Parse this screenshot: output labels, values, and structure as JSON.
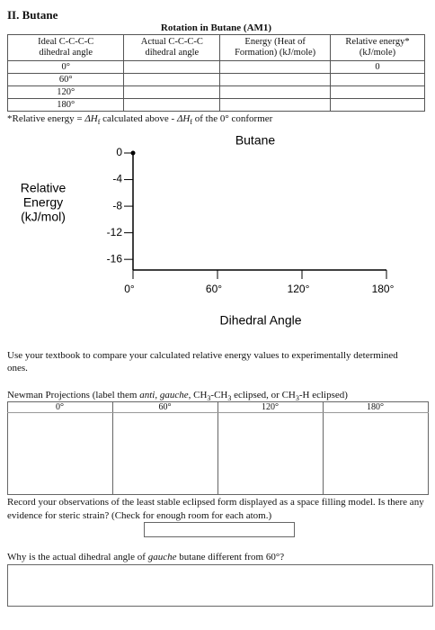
{
  "heading": "II. Butane",
  "table": {
    "title": "Rotation in Butane (AM1)",
    "headers": [
      [
        "Ideal C-C-C-C",
        "dihedral angle"
      ],
      [
        "Actual C-C-C-C",
        "dihedral angle"
      ],
      [
        "Energy (Heat of",
        "Formation) (kJ/mole)"
      ],
      [
        "Relative energy*",
        "(kJ/mole)"
      ]
    ],
    "rows": [
      {
        "angle": "0°",
        "relative_energy": "0"
      },
      {
        "angle": "60°"
      },
      {
        "angle": "120°"
      },
      {
        "angle": "180°"
      }
    ]
  },
  "footnote": [
    "*Relative energy = ",
    {
      "text": "ΔH",
      "style": "i"
    },
    {
      "text": "f",
      "style": "sub"
    },
    " calculated above - ",
    {
      "text": "ΔH",
      "style": "i"
    },
    {
      "text": "f",
      "style": "sub"
    },
    " of the 0° conformer"
  ],
  "graph": {
    "title": "Butane",
    "y_label": [
      "Relative",
      "Energy",
      "(kJ/mol)"
    ],
    "x_label": "Dihedral Angle",
    "ylim": [
      -17.6,
      0
    ],
    "yticks": [
      0,
      -4,
      -8,
      -12,
      -16
    ],
    "xlim": [
      0,
      180
    ],
    "xticks": [
      {
        "value": 0,
        "label": "0°"
      },
      {
        "value": 60,
        "label": "60°"
      },
      {
        "value": 120,
        "label": "120°"
      },
      {
        "value": 180,
        "label": "180°"
      }
    ]
  },
  "paragraph": "Use your textbook to compare your calculated relative energy values to experimentally determined ones.",
  "newman": {
    "prompt": [
      "Newman Projections (label them ",
      {
        "text": "anti, gauche,",
        "style": "i"
      },
      " CH",
      {
        "text": "3",
        "style": "sub"
      },
      "-CH",
      {
        "text": "3",
        "style": "sub"
      },
      " eclipsed, or CH",
      {
        "text": "3",
        "style": "sub"
      },
      "-H eclipsed)"
    ],
    "angles": [
      "0°",
      "60°",
      "120°",
      "180°"
    ]
  },
  "observation": "Record your observations of the least stable eclipsed form displayed as a space filling model. Is there any evidence for steric strain? (Check for enough room for each atom.)",
  "question": [
    "Why is the actual dihedral angle of ",
    {
      "text": "gauche",
      "style": "i"
    },
    " butane different from 60°?"
  ]
}
